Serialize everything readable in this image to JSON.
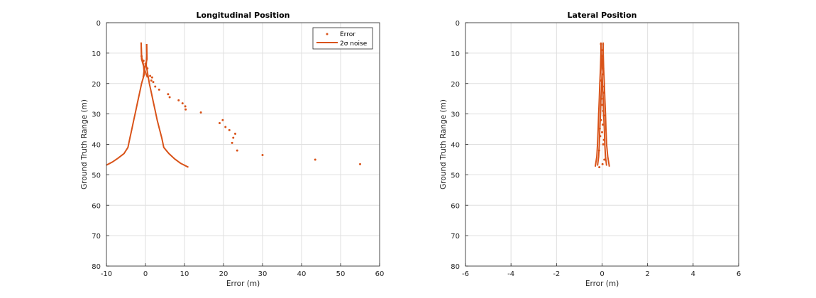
{
  "colors": {
    "series": "#d95319",
    "axis": "#262626",
    "grid": "#dfdfdf"
  },
  "chart_data": [
    {
      "type": "scatter",
      "title": "Longitudinal Position",
      "xlabel": "Error (m)",
      "ylabel": "Ground Truth Range (m)",
      "xlim": [
        -10,
        60
      ],
      "ylim": [
        0,
        80
      ],
      "y_reversed": true,
      "grid": true,
      "xticks": [
        -10,
        0,
        10,
        20,
        30,
        40,
        50,
        60
      ],
      "yticks": [
        0,
        10,
        20,
        30,
        40,
        50,
        60,
        70,
        80
      ],
      "legend": {
        "placement": "top-right",
        "entries": [
          "Error",
          "2σ noise"
        ]
      },
      "series": [
        {
          "name": "Error",
          "kind": "scatter",
          "points": [
            [
              -1,
              11
            ],
            [
              -0.5,
              12.5
            ],
            [
              0,
              13.5
            ],
            [
              0.5,
              15
            ],
            [
              1.2,
              17.5
            ],
            [
              1.7,
              18
            ],
            [
              1.5,
              19
            ],
            [
              2,
              19.5
            ],
            [
              2.5,
              21
            ],
            [
              3.5,
              22
            ],
            [
              5.8,
              23.5
            ],
            [
              6.2,
              24.5
            ],
            [
              8.5,
              25.5
            ],
            [
              9.5,
              26.5
            ],
            [
              10.2,
              27.5
            ],
            [
              10.3,
              28.5
            ],
            [
              14.2,
              29.5
            ],
            [
              19.8,
              32
            ],
            [
              19,
              33
            ],
            [
              20.5,
              34.3
            ],
            [
              21.5,
              35.3
            ],
            [
              23,
              36.5
            ],
            [
              22.5,
              37.8
            ],
            [
              22.2,
              39.5
            ],
            [
              23.5,
              42
            ],
            [
              30,
              43.5
            ],
            [
              43.5,
              45
            ],
            [
              55,
              46.5
            ]
          ]
        },
        {
          "name": "2σ noise",
          "kind": "line",
          "paths": [
            [
              [
                -1.1,
                6.5
              ],
              [
                -1,
                11
              ],
              [
                -0.5,
                14
              ],
              [
                -0.3,
                17
              ],
              [
                -1,
                20
              ],
              [
                -1.5,
                23
              ],
              [
                -2,
                26
              ],
              [
                -2.5,
                29
              ],
              [
                -3,
                32
              ],
              [
                -3.5,
                35
              ],
              [
                -4,
                38
              ],
              [
                -4.5,
                41
              ],
              [
                -5.5,
                43
              ],
              [
                -7,
                44.5
              ],
              [
                -8.5,
                45.8
              ],
              [
                -10,
                46.8
              ]
            ],
            [
              [
                -1.1,
                6.5
              ],
              [
                -1,
                12
              ],
              [
                -0.2,
                15.5
              ],
              [
                0.5,
                18
              ]
            ],
            [
              [
                0.3,
                7
              ],
              [
                0.3,
                11
              ],
              [
                0.2,
                14
              ],
              [
                0.6,
                17
              ],
              [
                1,
                20
              ],
              [
                1.5,
                23
              ],
              [
                2,
                26
              ],
              [
                2.5,
                29
              ],
              [
                3,
                32
              ],
              [
                3.6,
                35
              ],
              [
                4.2,
                38
              ],
              [
                4.7,
                41
              ],
              [
                6,
                43
              ],
              [
                7.5,
                44.8
              ],
              [
                9,
                46.2
              ],
              [
                11,
                47.5
              ]
            ],
            [
              [
                0.3,
                7
              ],
              [
                0.4,
                12
              ],
              [
                -0.3,
                15.5
              ],
              [
                -0.6,
                18
              ]
            ]
          ]
        }
      ]
    },
    {
      "type": "scatter",
      "title": "Lateral Position",
      "xlabel": "Error (m)",
      "ylabel": "Ground Truth Range (m)",
      "xlim": [
        -6,
        6
      ],
      "ylim": [
        0,
        80
      ],
      "y_reversed": true,
      "grid": true,
      "xticks": [
        -6,
        -4,
        -2,
        0,
        2,
        4,
        6
      ],
      "yticks": [
        0,
        10,
        20,
        30,
        40,
        50,
        60,
        70,
        80
      ],
      "series": [
        {
          "name": "Error",
          "kind": "scatter",
          "points": [
            [
              -0.05,
              7
            ],
            [
              0.02,
              9
            ],
            [
              -0.02,
              11
            ],
            [
              0.03,
              13
            ],
            [
              0.05,
              15
            ],
            [
              0.02,
              17
            ],
            [
              -0.05,
              19
            ],
            [
              0.03,
              21
            ],
            [
              0.06,
              23
            ],
            [
              -0.03,
              25
            ],
            [
              0,
              27
            ],
            [
              0.05,
              29
            ],
            [
              0.08,
              30.5
            ],
            [
              -0.05,
              32
            ],
            [
              0.03,
              33.5
            ],
            [
              -0.1,
              34.8
            ],
            [
              0,
              36
            ],
            [
              -0.08,
              37.3
            ],
            [
              0.08,
              38.5
            ],
            [
              0.05,
              40
            ],
            [
              -0.13,
              42
            ],
            [
              0.1,
              45
            ],
            [
              0.02,
              46.5
            ],
            [
              -0.12,
              47.5
            ]
          ]
        },
        {
          "name": "2σ noise",
          "kind": "line",
          "paths": [
            [
              [
                -0.05,
                6.5
              ],
              [
                -0.05,
                10
              ],
              [
                -0.07,
                15
              ],
              [
                -0.1,
                20
              ],
              [
                -0.12,
                25
              ],
              [
                -0.15,
                30
              ],
              [
                -0.17,
                35
              ],
              [
                -0.2,
                40
              ],
              [
                -0.23,
                44
              ],
              [
                -0.3,
                47.3
              ]
            ],
            [
              [
                0.05,
                6.5
              ],
              [
                0.05,
                10
              ],
              [
                0.07,
                15
              ],
              [
                0.1,
                20
              ],
              [
                0.12,
                25
              ],
              [
                0.15,
                30
              ],
              [
                0.17,
                35
              ],
              [
                0.2,
                40
              ],
              [
                0.25,
                44
              ],
              [
                0.32,
                47.3
              ]
            ],
            [
              [
                -0.05,
                7
              ],
              [
                -0.03,
                12
              ],
              [
                0,
                16
              ],
              [
                0.02,
                20
              ],
              [
                0.05,
                25
              ],
              [
                0.07,
                30
              ],
              [
                0.1,
                35
              ],
              [
                0.12,
                40
              ],
              [
                0.15,
                44
              ],
              [
                0.2,
                47
              ]
            ],
            [
              [
                0.05,
                7
              ],
              [
                0.03,
                12
              ],
              [
                0,
                16
              ],
              [
                -0.02,
                20
              ],
              [
                -0.05,
                25
              ],
              [
                -0.07,
                30
              ],
              [
                -0.1,
                35
              ],
              [
                -0.12,
                40
              ],
              [
                -0.15,
                44
              ],
              [
                -0.2,
                47
              ]
            ]
          ]
        }
      ]
    }
  ]
}
